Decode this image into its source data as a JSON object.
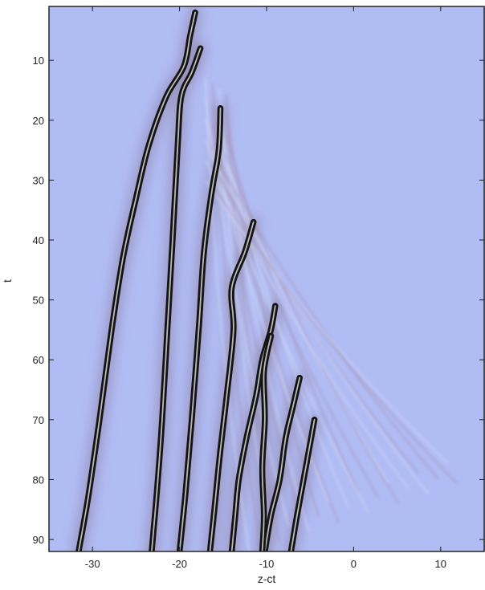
{
  "chart_data": {
    "type": "heatmap",
    "title": "",
    "xlabel": "z-ct",
    "ylabel": "t",
    "xlim": [
      -35,
      15
    ],
    "ylim": [
      1,
      92
    ],
    "y_inverted": true,
    "x_ticks": [
      -30,
      -20,
      -10,
      0,
      10
    ],
    "y_ticks": [
      10,
      20,
      30,
      40,
      50,
      60,
      70,
      80,
      90
    ],
    "grid": false,
    "legend": "none",
    "colors": {
      "background": "#b0bcf4",
      "soliton_core": "#141414",
      "soliton_highlight": "#e4e4e4",
      "halo": "#8c7a9a",
      "ripple": "#a892b2",
      "frame": "#1a1a1a"
    },
    "tracks": [
      {
        "points": [
          {
            "z": -18.2,
            "t": 2
          },
          {
            "z": -18.8,
            "t": 6
          },
          {
            "z": -19.5,
            "t": 11
          },
          {
            "z": -21.5,
            "t": 16
          },
          {
            "z": -23.5,
            "t": 24
          },
          {
            "z": -25,
            "t": 33
          },
          {
            "z": -26.5,
            "t": 43
          },
          {
            "z": -27.8,
            "t": 55
          },
          {
            "z": -29.2,
            "t": 70
          },
          {
            "z": -30.5,
            "t": 83
          },
          {
            "z": -31.6,
            "t": 92
          }
        ]
      },
      {
        "points": [
          {
            "z": -17.6,
            "t": 8
          },
          {
            "z": -18.6,
            "t": 12
          },
          {
            "z": -19.8,
            "t": 16
          },
          {
            "z": -20.2,
            "t": 24
          },
          {
            "z": -20.8,
            "t": 40
          },
          {
            "z": -21.4,
            "t": 55
          },
          {
            "z": -22,
            "t": 70
          },
          {
            "z": -22.6,
            "t": 82
          },
          {
            "z": -23.2,
            "t": 92
          }
        ]
      },
      {
        "points": [
          {
            "z": -15.3,
            "t": 18
          },
          {
            "z": -15.5,
            "t": 25
          },
          {
            "z": -16.3,
            "t": 32
          },
          {
            "z": -17.2,
            "t": 42
          },
          {
            "z": -17.8,
            "t": 55
          },
          {
            "z": -18.6,
            "t": 70
          },
          {
            "z": -19.3,
            "t": 82
          },
          {
            "z": -20,
            "t": 92
          }
        ]
      },
      {
        "points": [
          {
            "z": -11.5,
            "t": 37
          },
          {
            "z": -12.5,
            "t": 42
          },
          {
            "z": -14,
            "t": 48
          },
          {
            "z": -13.8,
            "t": 55
          },
          {
            "z": -14.5,
            "t": 65
          },
          {
            "z": -15.3,
            "t": 75
          },
          {
            "z": -16,
            "t": 85
          },
          {
            "z": -16.5,
            "t": 92
          }
        ]
      },
      {
        "points": [
          {
            "z": -9,
            "t": 51
          },
          {
            "z": -9.5,
            "t": 55
          },
          {
            "z": -10.5,
            "t": 60
          },
          {
            "z": -11.2,
            "t": 66
          },
          {
            "z": -12.3,
            "t": 73
          },
          {
            "z": -13.2,
            "t": 80
          },
          {
            "z": -13.6,
            "t": 86
          },
          {
            "z": -14,
            "t": 92
          }
        ]
      },
      {
        "points": [
          {
            "z": -6.2,
            "t": 63
          },
          {
            "z": -7,
            "t": 68
          },
          {
            "z": -7.8,
            "t": 73
          },
          {
            "z": -8.5,
            "t": 80
          },
          {
            "z": -9.5,
            "t": 86
          },
          {
            "z": -10.2,
            "t": 92
          }
        ]
      },
      {
        "points": [
          {
            "z": -9.5,
            "t": 56
          },
          {
            "z": -10.3,
            "t": 62
          },
          {
            "z": -10.2,
            "t": 70
          },
          {
            "z": -10.5,
            "t": 78
          },
          {
            "z": -10.3,
            "t": 86
          },
          {
            "z": -10.5,
            "t": 92
          }
        ]
      },
      {
        "points": [
          {
            "z": -4.5,
            "t": 70
          },
          {
            "z": -5.5,
            "t": 78
          },
          {
            "z": -6.5,
            "t": 86
          },
          {
            "z": -7.2,
            "t": 92
          }
        ]
      }
    ],
    "ripples": {
      "count": 22,
      "start": {
        "z": -17,
        "t": 13
      },
      "end_z_range": [
        -12,
        12
      ],
      "end_t_range": [
        60,
        92
      ]
    }
  }
}
